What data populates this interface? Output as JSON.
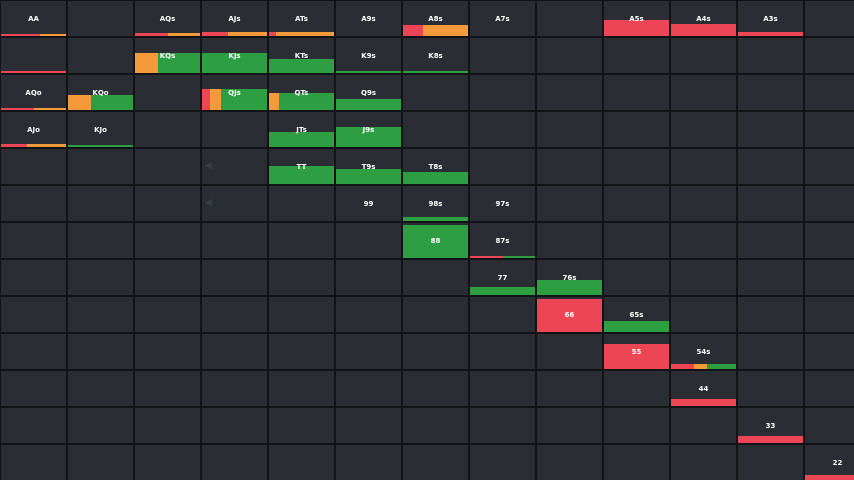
{
  "colors": {
    "green": "#2e9e42",
    "red": "#ec4656",
    "orange": "#f59a3a",
    "cell": "#2a2d34",
    "grid_line": "#111317"
  },
  "rows": [
    [
      {
        "label": "AA",
        "mix": [
          {
            "c": "red",
            "w": 0.6
          },
          {
            "c": "orange",
            "w": 0.4
          }
        ],
        "fill": 0.06
      },
      {
        "label": "",
        "mix": [],
        "fill": 0
      },
      {
        "label": "AQs",
        "mix": [
          {
            "c": "red",
            "w": 0.5
          },
          {
            "c": "orange",
            "w": 0.5
          }
        ],
        "fill": 0.08
      },
      {
        "label": "AJs",
        "mix": [
          {
            "c": "red",
            "w": 0.4
          },
          {
            "c": "orange",
            "w": 0.6
          }
        ],
        "fill": 0.12
      },
      {
        "label": "ATs",
        "mix": [
          {
            "c": "red",
            "w": 0.1
          },
          {
            "c": "orange",
            "w": 0.9
          }
        ],
        "fill": 0.12
      },
      {
        "label": "A9s",
        "mix": [],
        "fill": 0
      },
      {
        "label": "A8s",
        "mix": [
          {
            "c": "red",
            "w": 0.3
          },
          {
            "c": "orange",
            "w": 0.7
          }
        ],
        "fill": 0.3
      },
      {
        "label": "A7s",
        "mix": [],
        "fill": 0
      },
      {
        "label": "",
        "mix": [],
        "fill": 0
      },
      {
        "label": "A5s",
        "mix": [
          {
            "c": "red",
            "w": 1
          }
        ],
        "fill": 0.45
      },
      {
        "label": "A4s",
        "mix": [
          {
            "c": "red",
            "w": 1
          }
        ],
        "fill": 0.35
      },
      {
        "label": "A3s",
        "mix": [
          {
            "c": "red",
            "w": 1
          }
        ],
        "fill": 0.12
      },
      {
        "label": "",
        "mix": [],
        "fill": 0
      }
    ],
    [
      {
        "label": "",
        "mix": [
          {
            "c": "red",
            "w": 1
          }
        ],
        "fill": 0.04
      },
      {
        "label": "",
        "mix": [],
        "fill": 0
      },
      {
        "label": "KQs",
        "mix": [
          {
            "c": "orange",
            "w": 0.35
          },
          {
            "c": "green",
            "w": 0.65
          }
        ],
        "fill": 0.58
      },
      {
        "label": "KJs",
        "mix": [
          {
            "c": "green",
            "w": 1
          }
        ],
        "fill": 0.58
      },
      {
        "label": "KTs",
        "mix": [
          {
            "c": "green",
            "w": 1
          }
        ],
        "fill": 0.4
      },
      {
        "label": "K9s",
        "mix": [
          {
            "c": "green",
            "w": 1
          }
        ],
        "fill": 0.05
      },
      {
        "label": "K8s",
        "mix": [
          {
            "c": "green",
            "w": 1
          }
        ],
        "fill": 0.04
      },
      {
        "label": "",
        "mix": [],
        "fill": 0
      },
      {
        "label": "",
        "mix": [],
        "fill": 0
      },
      {
        "label": "",
        "mix": [],
        "fill": 0
      },
      {
        "label": "",
        "mix": [],
        "fill": 0
      },
      {
        "label": "",
        "mix": [],
        "fill": 0
      },
      {
        "label": "",
        "mix": [],
        "fill": 0
      }
    ],
    [
      {
        "label": "AQo",
        "mix": [
          {
            "c": "red",
            "w": 0.5
          },
          {
            "c": "orange",
            "w": 0.5
          }
        ],
        "fill": 0.05
      },
      {
        "label": "KQo",
        "mix": [
          {
            "c": "orange",
            "w": 0.35
          },
          {
            "c": "green",
            "w": 0.65
          }
        ],
        "fill": 0.42
      },
      {
        "label": "",
        "mix": [],
        "fill": 0
      },
      {
        "label": "QJs",
        "mix": [
          {
            "c": "red",
            "w": 0.12
          },
          {
            "c": "orange",
            "w": 0.18
          },
          {
            "c": "green",
            "w": 0.7
          }
        ],
        "fill": 0.6
      },
      {
        "label": "QTs",
        "mix": [
          {
            "c": "orange",
            "w": 0.15
          },
          {
            "c": "green",
            "w": 0.85
          }
        ],
        "fill": 0.48
      },
      {
        "label": "Q9s",
        "mix": [
          {
            "c": "green",
            "w": 1
          }
        ],
        "fill": 0.32
      },
      {
        "label": "",
        "mix": [],
        "fill": 0
      },
      {
        "label": "",
        "mix": [],
        "fill": 0
      },
      {
        "label": "",
        "mix": [],
        "fill": 0
      },
      {
        "label": "",
        "mix": [],
        "fill": 0
      },
      {
        "label": "",
        "mix": [],
        "fill": 0
      },
      {
        "label": "",
        "mix": [],
        "fill": 0
      },
      {
        "label": "",
        "mix": [],
        "fill": 0
      }
    ],
    [
      {
        "label": "AJo",
        "mix": [
          {
            "c": "red",
            "w": 0.4
          },
          {
            "c": "orange",
            "w": 0.6
          }
        ],
        "fill": 0.08
      },
      {
        "label": "KJo",
        "mix": [
          {
            "c": "green",
            "w": 1
          }
        ],
        "fill": 0.05
      },
      {
        "label": "",
        "mix": [],
        "fill": 0
      },
      {
        "label": "",
        "mix": [],
        "fill": 0
      },
      {
        "label": "JTs",
        "mix": [
          {
            "c": "green",
            "w": 1
          }
        ],
        "fill": 0.42
      },
      {
        "label": "J9s",
        "mix": [
          {
            "c": "green",
            "w": 1
          }
        ],
        "fill": 0.58
      },
      {
        "label": "",
        "mix": [],
        "fill": 0
      },
      {
        "label": "",
        "mix": [],
        "fill": 0
      },
      {
        "label": "",
        "mix": [],
        "fill": 0
      },
      {
        "label": "",
        "mix": [],
        "fill": 0
      },
      {
        "label": "",
        "mix": [],
        "fill": 0
      },
      {
        "label": "",
        "mix": [],
        "fill": 0
      },
      {
        "label": "",
        "mix": [],
        "fill": 0
      }
    ],
    [
      {
        "label": "",
        "mix": [],
        "fill": 0
      },
      {
        "label": "",
        "mix": [],
        "fill": 0
      },
      {
        "label": "",
        "mix": [],
        "fill": 0
      },
      {
        "label": "",
        "mix": [],
        "fill": 0
      },
      {
        "label": "TT",
        "mix": [
          {
            "c": "green",
            "w": 1
          }
        ],
        "fill": 0.5
      },
      {
        "label": "T9s",
        "mix": [
          {
            "c": "green",
            "w": 1
          }
        ],
        "fill": 0.42
      },
      {
        "label": "T8s",
        "mix": [
          {
            "c": "green",
            "w": 1
          }
        ],
        "fill": 0.35
      },
      {
        "label": "",
        "mix": [],
        "fill": 0
      },
      {
        "label": "",
        "mix": [],
        "fill": 0
      },
      {
        "label": "",
        "mix": [],
        "fill": 0
      },
      {
        "label": "",
        "mix": [],
        "fill": 0
      },
      {
        "label": "",
        "mix": [],
        "fill": 0
      },
      {
        "label": "",
        "mix": [],
        "fill": 0
      }
    ],
    [
      {
        "label": "",
        "mix": [],
        "fill": 0
      },
      {
        "label": "",
        "mix": [],
        "fill": 0
      },
      {
        "label": "",
        "mix": [],
        "fill": 0
      },
      {
        "label": "",
        "mix": [],
        "fill": 0
      },
      {
        "label": "",
        "mix": [],
        "fill": 0
      },
      {
        "label": "99",
        "mix": [],
        "fill": 0
      },
      {
        "label": "98s",
        "mix": [
          {
            "c": "green",
            "w": 1
          }
        ],
        "fill": 0.12
      },
      {
        "label": "97s",
        "mix": [],
        "fill": 0
      },
      {
        "label": "",
        "mix": [],
        "fill": 0
      },
      {
        "label": "",
        "mix": [],
        "fill": 0
      },
      {
        "label": "",
        "mix": [],
        "fill": 0
      },
      {
        "label": "",
        "mix": [],
        "fill": 0
      },
      {
        "label": "",
        "mix": [],
        "fill": 0
      }
    ],
    [
      {
        "label": "",
        "mix": [],
        "fill": 0
      },
      {
        "label": "",
        "mix": [],
        "fill": 0
      },
      {
        "label": "",
        "mix": [],
        "fill": 0
      },
      {
        "label": "",
        "mix": [],
        "fill": 0
      },
      {
        "label": "",
        "mix": [],
        "fill": 0
      },
      {
        "label": "",
        "mix": [],
        "fill": 0
      },
      {
        "label": "88",
        "mix": [
          {
            "c": "green",
            "w": 1
          }
        ],
        "fill": 0.95
      },
      {
        "label": "87s",
        "mix": [
          {
            "c": "red",
            "w": 0.5
          },
          {
            "c": "green",
            "w": 0.5
          }
        ],
        "fill": 0.06
      },
      {
        "label": "",
        "mix": [],
        "fill": 0
      },
      {
        "label": "",
        "mix": [],
        "fill": 0
      },
      {
        "label": "",
        "mix": [],
        "fill": 0
      },
      {
        "label": "",
        "mix": [],
        "fill": 0
      },
      {
        "label": "",
        "mix": [],
        "fill": 0
      }
    ],
    [
      {
        "label": "",
        "mix": [],
        "fill": 0
      },
      {
        "label": "",
        "mix": [],
        "fill": 0
      },
      {
        "label": "",
        "mix": [],
        "fill": 0
      },
      {
        "label": "",
        "mix": [],
        "fill": 0
      },
      {
        "label": "",
        "mix": [],
        "fill": 0
      },
      {
        "label": "",
        "mix": [],
        "fill": 0
      },
      {
        "label": "",
        "mix": [],
        "fill": 0
      },
      {
        "label": "77",
        "mix": [
          {
            "c": "green",
            "w": 1
          }
        ],
        "fill": 0.22
      },
      {
        "label": "76s",
        "mix": [
          {
            "c": "green",
            "w": 1
          }
        ],
        "fill": 0.42
      },
      {
        "label": "",
        "mix": [],
        "fill": 0
      },
      {
        "label": "",
        "mix": [],
        "fill": 0
      },
      {
        "label": "",
        "mix": [],
        "fill": 0
      },
      {
        "label": "",
        "mix": [],
        "fill": 0
      }
    ],
    [
      {
        "label": "",
        "mix": [],
        "fill": 0
      },
      {
        "label": "",
        "mix": [],
        "fill": 0
      },
      {
        "label": "",
        "mix": [],
        "fill": 0
      },
      {
        "label": "",
        "mix": [],
        "fill": 0
      },
      {
        "label": "",
        "mix": [],
        "fill": 0
      },
      {
        "label": "",
        "mix": [],
        "fill": 0
      },
      {
        "label": "",
        "mix": [],
        "fill": 0
      },
      {
        "label": "",
        "mix": [],
        "fill": 0
      },
      {
        "label": "66",
        "mix": [
          {
            "c": "red",
            "w": 1
          }
        ],
        "fill": 0.95
      },
      {
        "label": "65s",
        "mix": [
          {
            "c": "green",
            "w": 1
          }
        ],
        "fill": 0.3
      },
      {
        "label": "",
        "mix": [],
        "fill": 0
      },
      {
        "label": "",
        "mix": [],
        "fill": 0
      },
      {
        "label": "",
        "mix": [],
        "fill": 0
      }
    ],
    [
      {
        "label": "",
        "mix": [],
        "fill": 0
      },
      {
        "label": "",
        "mix": [],
        "fill": 0
      },
      {
        "label": "",
        "mix": [],
        "fill": 0
      },
      {
        "label": "",
        "mix": [],
        "fill": 0
      },
      {
        "label": "",
        "mix": [],
        "fill": 0
      },
      {
        "label": "",
        "mix": [],
        "fill": 0
      },
      {
        "label": "",
        "mix": [],
        "fill": 0
      },
      {
        "label": "",
        "mix": [],
        "fill": 0
      },
      {
        "label": "",
        "mix": [],
        "fill": 0
      },
      {
        "label": "55",
        "mix": [
          {
            "c": "red",
            "w": 1
          }
        ],
        "fill": 0.72
      },
      {
        "label": "54s",
        "mix": [
          {
            "c": "red",
            "w": 0.35
          },
          {
            "c": "orange",
            "w": 0.2
          },
          {
            "c": "green",
            "w": 0.45
          }
        ],
        "fill": 0.15
      },
      {
        "label": "",
        "mix": [],
        "fill": 0
      },
      {
        "label": "",
        "mix": [],
        "fill": 0
      }
    ],
    [
      {
        "label": "",
        "mix": [],
        "fill": 0
      },
      {
        "label": "",
        "mix": [],
        "fill": 0
      },
      {
        "label": "",
        "mix": [],
        "fill": 0
      },
      {
        "label": "",
        "mix": [],
        "fill": 0
      },
      {
        "label": "",
        "mix": [],
        "fill": 0
      },
      {
        "label": "",
        "mix": [],
        "fill": 0
      },
      {
        "label": "",
        "mix": [],
        "fill": 0
      },
      {
        "label": "",
        "mix": [],
        "fill": 0
      },
      {
        "label": "",
        "mix": [],
        "fill": 0
      },
      {
        "label": "",
        "mix": [],
        "fill": 0
      },
      {
        "label": "44",
        "mix": [
          {
            "c": "red",
            "w": 1
          }
        ],
        "fill": 0.2
      },
      {
        "label": "",
        "mix": [],
        "fill": 0
      },
      {
        "label": "",
        "mix": [],
        "fill": 0
      }
    ],
    [
      {
        "label": "",
        "mix": [],
        "fill": 0
      },
      {
        "label": "",
        "mix": [],
        "fill": 0
      },
      {
        "label": "",
        "mix": [],
        "fill": 0
      },
      {
        "label": "",
        "mix": [],
        "fill": 0
      },
      {
        "label": "",
        "mix": [],
        "fill": 0
      },
      {
        "label": "",
        "mix": [],
        "fill": 0
      },
      {
        "label": "",
        "mix": [],
        "fill": 0
      },
      {
        "label": "",
        "mix": [],
        "fill": 0
      },
      {
        "label": "",
        "mix": [],
        "fill": 0
      },
      {
        "label": "",
        "mix": [],
        "fill": 0
      },
      {
        "label": "",
        "mix": [],
        "fill": 0
      },
      {
        "label": "33",
        "mix": [
          {
            "c": "red",
            "w": 1
          }
        ],
        "fill": 0.2
      },
      {
        "label": "",
        "mix": [],
        "fill": 0
      }
    ],
    [
      {
        "label": "",
        "mix": [],
        "fill": 0
      },
      {
        "label": "",
        "mix": [],
        "fill": 0
      },
      {
        "label": "",
        "mix": [],
        "fill": 0
      },
      {
        "label": "",
        "mix": [],
        "fill": 0
      },
      {
        "label": "",
        "mix": [],
        "fill": 0
      },
      {
        "label": "",
        "mix": [],
        "fill": 0
      },
      {
        "label": "",
        "mix": [],
        "fill": 0
      },
      {
        "label": "",
        "mix": [],
        "fill": 0
      },
      {
        "label": "",
        "mix": [],
        "fill": 0
      },
      {
        "label": "",
        "mix": [],
        "fill": 0
      },
      {
        "label": "",
        "mix": [],
        "fill": 0
      },
      {
        "label": "",
        "mix": [],
        "fill": 0
      },
      {
        "label": "22",
        "mix": [
          {
            "c": "red",
            "w": 1
          }
        ],
        "fill": 0.14
      }
    ]
  ]
}
